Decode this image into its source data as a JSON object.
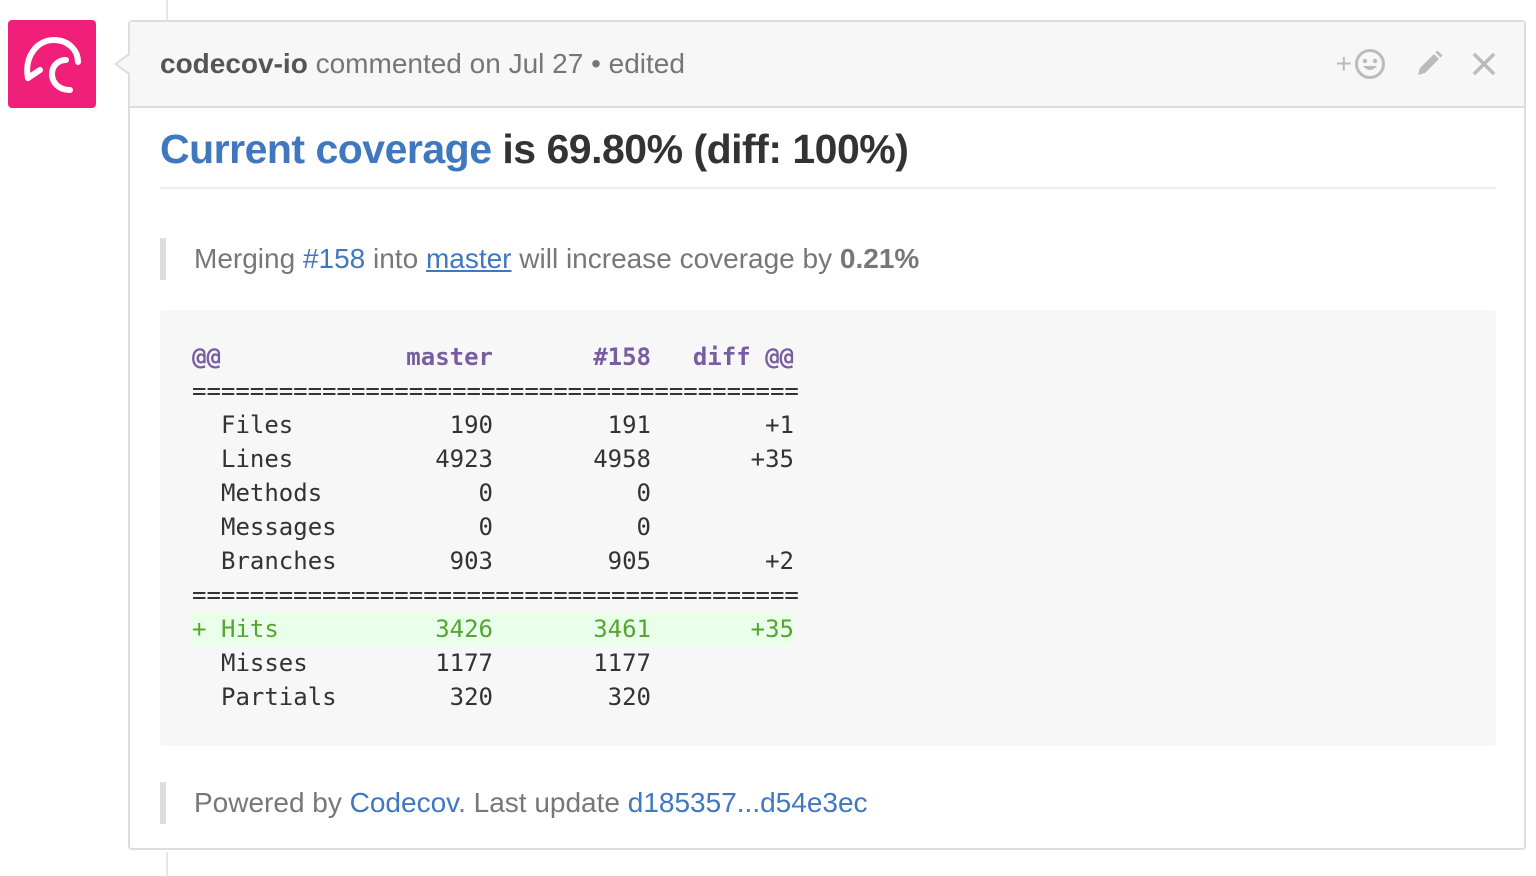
{
  "avatar": {
    "brand_color": "#f01f7a",
    "icon": "codecov-umbrella-logo"
  },
  "header": {
    "author": "codecov-io",
    "meta": " commented on Jul 27 • edited",
    "actions": {
      "reaction_plus": "+",
      "reaction_icon": "smiley-icon",
      "edit_icon": "pencil-icon",
      "delete_icon": "close-icon"
    }
  },
  "body": {
    "heading": {
      "link_text": "Current coverage",
      "rest": " is 69.80% (diff: 100%)"
    },
    "merge_note": {
      "prefix": "Merging ",
      "pr_link": "#158",
      "middle": " into ",
      "branch_link": "master",
      "suffix": " will increase coverage by ",
      "amount": "0.21%"
    },
    "table": {
      "header": [
        "@@",
        "master",
        "#158",
        "diff @@"
      ],
      "separator": "==========================================",
      "rows": [
        {
          "marker": " ",
          "label": "Files",
          "master": "190",
          "pr": "191",
          "diff": "+1"
        },
        {
          "marker": " ",
          "label": "Lines",
          "master": "4923",
          "pr": "4958",
          "diff": "+35"
        },
        {
          "marker": " ",
          "label": "Methods",
          "master": "0",
          "pr": "0",
          "diff": ""
        },
        {
          "marker": " ",
          "label": "Messages",
          "master": "0",
          "pr": "0",
          "diff": ""
        },
        {
          "marker": " ",
          "label": "Branches",
          "master": "903",
          "pr": "905",
          "diff": "+2"
        }
      ],
      "rows2": [
        {
          "marker": "+",
          "label": "Hits",
          "master": "3426",
          "pr": "3461",
          "diff": "+35"
        },
        {
          "marker": " ",
          "label": "Misses",
          "master": "1177",
          "pr": "1177",
          "diff": ""
        },
        {
          "marker": " ",
          "label": "Partials",
          "master": "320",
          "pr": "320",
          "diff": ""
        }
      ]
    },
    "footer": {
      "prefix": "Powered by ",
      "codecov_link": "Codecov",
      "middle": ". Last update ",
      "commit_range_link": "d185357...d54e3ec"
    }
  }
}
